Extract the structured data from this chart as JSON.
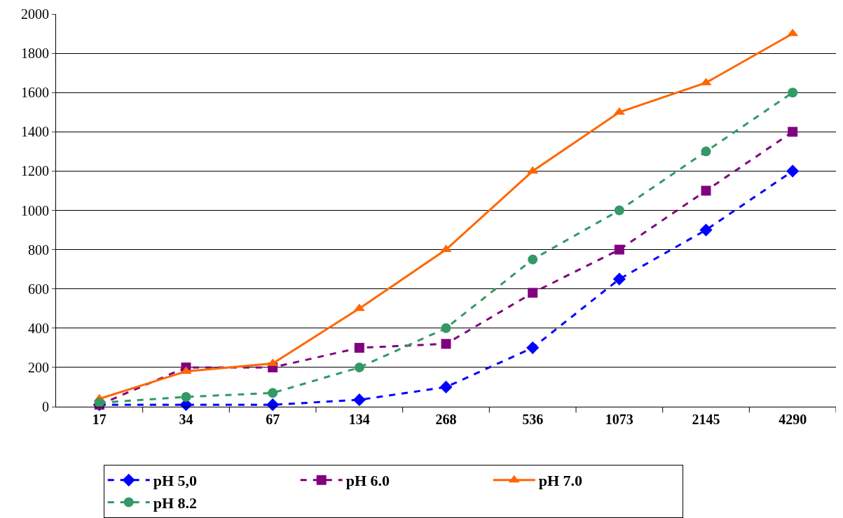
{
  "chart_data": {
    "type": "line",
    "categories": [
      "17",
      "34",
      "67",
      "134",
      "268",
      "536",
      "1073",
      "2145",
      "4290"
    ],
    "series": [
      {
        "name": "pH 5,0",
        "color": "#0000ff",
        "marker": "diamond",
        "line_style": "dashed",
        "values": [
          10,
          10,
          10,
          35,
          100,
          300,
          650,
          900,
          1200
        ]
      },
      {
        "name": "pH 6.0",
        "color": "#800080",
        "marker": "square",
        "line_style": "dashed",
        "values": [
          10,
          200,
          200,
          300,
          320,
          580,
          800,
          1100,
          1400
        ]
      },
      {
        "name": "pH 7.0",
        "color": "#ff6600",
        "marker": "triangle",
        "line_style": "solid",
        "values": [
          40,
          180,
          220,
          500,
          800,
          1200,
          1500,
          1650,
          1900
        ]
      },
      {
        "name": "pH 8.2",
        "color": "#339966",
        "marker": "circle",
        "line_style": "dashed",
        "values": [
          20,
          50,
          70,
          200,
          400,
          750,
          1000,
          1300,
          1600
        ]
      }
    ],
    "ylim": [
      0,
      2000
    ],
    "yticks": [
      0,
      200,
      400,
      600,
      800,
      1000,
      1200,
      1400,
      1600,
      1800,
      2000
    ],
    "grid": "y",
    "legend": "bottom"
  }
}
